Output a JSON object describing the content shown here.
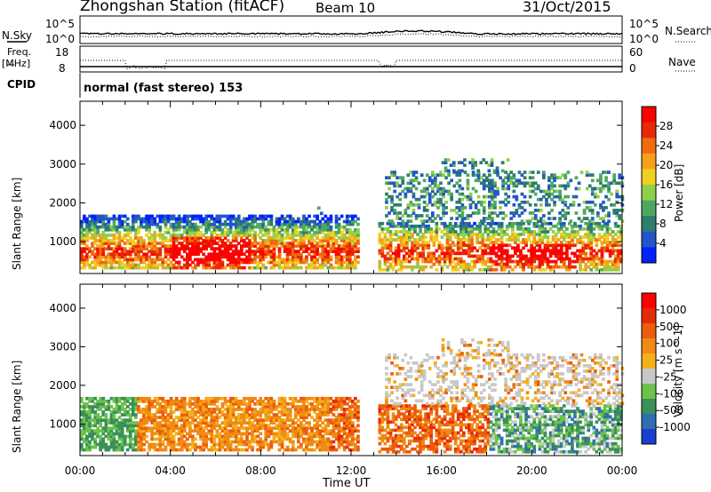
{
  "header": {
    "station": "Zhongshan Station (fitACF)",
    "beam": "Beam 10",
    "date": "31/Oct/2015"
  },
  "nsky_panel": {
    "left_label": "N.Sky",
    "right_label": "N.Search",
    "left_ticks": [
      "10^5",
      "10^0"
    ],
    "right_ticks": [
      "10^5",
      "10^0"
    ]
  },
  "freq_panel": {
    "left_label_line1": "Freq.",
    "left_label_line2": "[MHz]",
    "left_ticks": [
      "18",
      "8"
    ],
    "right_label": "Nave",
    "right_ticks": [
      "60",
      "0"
    ]
  },
  "cpid": {
    "label": "CPID",
    "value": "normal (fast stereo) 153"
  },
  "time_axis": {
    "label": "Time UT",
    "ticks": [
      "00:00",
      "04:00",
      "08:00",
      "12:00",
      "16:00",
      "20:00",
      "00:00"
    ],
    "range_hours": [
      0,
      24
    ]
  },
  "range_axis": {
    "label": "Slant Range [km]",
    "ticks": [
      1000,
      2000,
      3000,
      4000
    ],
    "range_km": [
      180,
      4620
    ]
  },
  "chart_data": [
    {
      "type": "heatmap",
      "panel": "power",
      "colorbar_label": "Power [dB]",
      "colorbar_ticks": [
        "28",
        "24",
        "20",
        "16",
        "12",
        "8",
        "4"
      ],
      "colorbar_range": [
        0,
        32
      ],
      "colors": [
        "#0022ff",
        "#2255cc",
        "#2e7d6d",
        "#4fa860",
        "#8fd04a",
        "#f0d020",
        "#f5a21a",
        "#ef6a10",
        "#e62a05",
        "#ff0000"
      ]
    },
    {
      "type": "heatmap",
      "panel": "velocity",
      "colorbar_label": "Velocity [m s^-1]",
      "colorbar_ticks": [
        "1000",
        "500",
        "100",
        "25",
        "-25",
        "-100",
        "-500",
        "-1000"
      ],
      "colors": [
        "#1a3fd0",
        "#2f6fb0",
        "#3b8f5a",
        "#6cc34c",
        "#c8c8c8",
        "#f3b01a",
        "#f08a14",
        "#ec5c0c",
        "#e62a05",
        "#ff0000"
      ]
    }
  ]
}
